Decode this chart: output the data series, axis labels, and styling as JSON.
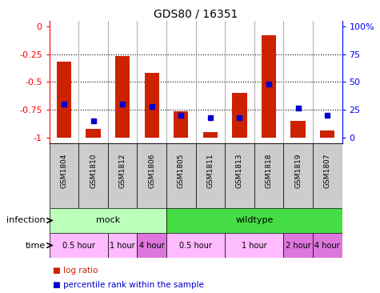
{
  "title": "GDS80 / 16351",
  "samples": [
    "GSM1804",
    "GSM1810",
    "GSM1812",
    "GSM1806",
    "GSM1805",
    "GSM1811",
    "GSM1813",
    "GSM1818",
    "GSM1819",
    "GSM1807"
  ],
  "log_ratio": [
    -0.32,
    -0.92,
    -0.27,
    -0.42,
    -0.76,
    -0.95,
    -0.6,
    -0.08,
    -0.85,
    -0.93
  ],
  "percentile": [
    30,
    15,
    30,
    28,
    20,
    18,
    18,
    48,
    27,
    20
  ],
  "infection_groups": [
    {
      "label": "mock",
      "start": 0,
      "end": 4,
      "color": "#bbffbb"
    },
    {
      "label": "wildtype",
      "start": 4,
      "end": 10,
      "color": "#44dd44"
    }
  ],
  "time_groups": [
    {
      "label": "0.5 hour",
      "start": 0,
      "end": 2,
      "color": "#ffbbff"
    },
    {
      "label": "1 hour",
      "start": 2,
      "end": 3,
      "color": "#ffbbff"
    },
    {
      "label": "4 hour",
      "start": 3,
      "end": 4,
      "color": "#dd77dd"
    },
    {
      "label": "0.5 hour",
      "start": 4,
      "end": 6,
      "color": "#ffbbff"
    },
    {
      "label": "1 hour",
      "start": 6,
      "end": 8,
      "color": "#ffbbff"
    },
    {
      "label": "2 hour",
      "start": 8,
      "end": 9,
      "color": "#dd77dd"
    },
    {
      "label": "4 hour",
      "start": 9,
      "end": 10,
      "color": "#dd77dd"
    }
  ],
  "ylim_left": [
    -1.05,
    0.05
  ],
  "ylim_right": [
    -105,
    5
  ],
  "yticks_left": [
    0,
    -0.25,
    -0.5,
    -0.75,
    -1.0
  ],
  "ytick_labels_left": [
    "0",
    "-0.25",
    "-0.5",
    "-0.75",
    "-1"
  ],
  "yticks_right": [
    0,
    -25,
    -50,
    -75,
    -100
  ],
  "ytick_labels_right": [
    "0",
    "25",
    "50",
    "75",
    "100%"
  ],
  "bar_color": "#cc2200",
  "dot_color": "#0000cc",
  "dot_size": 5,
  "bar_width": 0.5,
  "legend_items": [
    "log ratio",
    "percentile rank within the sample"
  ],
  "infection_label": "infection",
  "time_label": "time",
  "sample_box_color": "#cccccc",
  "hline_vals": [
    -0.25,
    -0.5,
    -0.75
  ],
  "hline_color": "black",
  "vline_color": "#888888"
}
